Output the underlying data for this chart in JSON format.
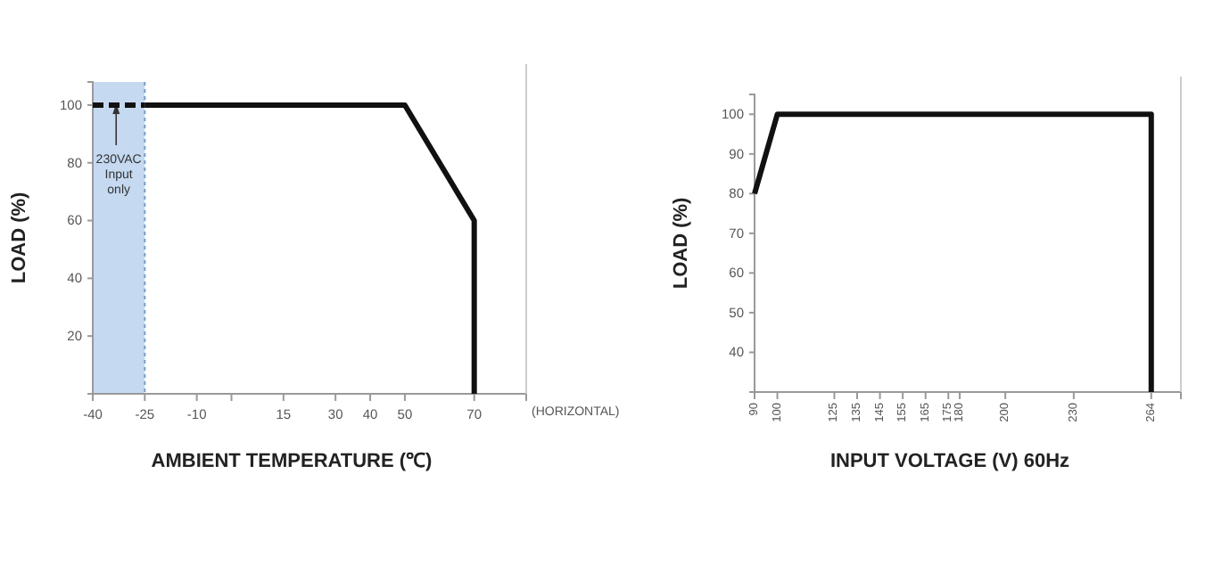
{
  "chart_data": [
    {
      "type": "line",
      "xlabel": "AMBIENT TEMPERATURE (℃)",
      "ylabel": "LOAD (%)",
      "xlim": [
        -40,
        85
      ],
      "xticks": [
        -40,
        -25,
        -10,
        {
          "value": 0,
          "label": null
        },
        15,
        30,
        40,
        50,
        70
      ],
      "ylim": [
        0,
        108
      ],
      "yticks": [
        20,
        40,
        60,
        80,
        100
      ],
      "marker": "none",
      "series": [
        {
          "x": [
            -40,
            -25
          ],
          "values": [
            100,
            100
          ],
          "color": "#111111",
          "line_style": "dashed"
        },
        {
          "x": [
            -25,
            50,
            70,
            70
          ],
          "values": [
            100,
            100,
            60,
            0
          ],
          "color": "#111111",
          "line_style": "solid"
        }
      ],
      "bands": [
        {
          "axis": "x",
          "from": -40,
          "to": -25,
          "label": "230VAC Input only",
          "color": "#c5d9f1"
        }
      ],
      "ref_lines": [
        {
          "axis": "x",
          "value": -25,
          "color": "#7a9cc6",
          "line_style": "dotted"
        }
      ],
      "annotations": [
        "(HORIZONTAL)"
      ]
    },
    {
      "type": "line",
      "xlabel": "INPUT VOLTAGE (V) 60Hz",
      "ylabel": "LOAD (%)",
      "xlim": [
        90,
        277
      ],
      "xticks": [
        90,
        100,
        125,
        135,
        145,
        155,
        165,
        175,
        180,
        200,
        230,
        264
      ],
      "ylim": [
        30,
        105
      ],
      "yticks": [
        40,
        50,
        60,
        70,
        80,
        90,
        100
      ],
      "marker": "none",
      "series": [
        {
          "x": [
            90,
            100,
            264,
            264
          ],
          "values": [
            80,
            100,
            100,
            30
          ],
          "color": "#111111",
          "line_style": "solid"
        }
      ]
    }
  ]
}
